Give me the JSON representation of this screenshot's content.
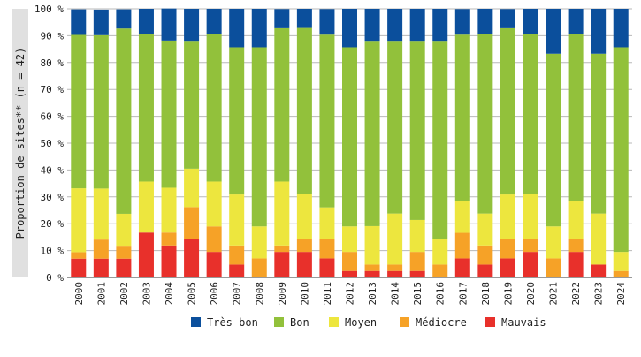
{
  "colors": {
    "tres_bon": "#0b4f9c",
    "bon": "#92c13b",
    "moyen": "#ede63e",
    "mediocre": "#f6a227",
    "mauvais": "#e8302b",
    "ylabel_band": "#e0e0e0",
    "grid": "#b8b8b8"
  },
  "chart_data": {
    "type": "bar",
    "stacked": true,
    "percent_scale": true,
    "title": "",
    "xlabel": "",
    "ylabel": "Proportion de sites** (n = 42)",
    "ylim": [
      0,
      100
    ],
    "yticks": [
      "0 %",
      "10 %",
      "20 %",
      "30 %",
      "40 %",
      "50 %",
      "60 %",
      "70 %",
      "80 %",
      "90 %",
      "100 %"
    ],
    "grid": true,
    "legend_position": "bottom",
    "categories": [
      "2000",
      "2001",
      "2002",
      "2003",
      "2004",
      "2005",
      "2006",
      "2007",
      "2008",
      "2009",
      "2010",
      "2011",
      "2012",
      "2013",
      "2014",
      "2015",
      "2016",
      "2017",
      "2018",
      "2019",
      "2020",
      "2021",
      "2022",
      "2023",
      "2024"
    ],
    "series": [
      {
        "name": "Mauvais",
        "color_key": "mauvais",
        "values": [
          7,
          7,
          7,
          16.7,
          11.9,
          14.3,
          9.5,
          4.8,
          0,
          9.5,
          9.5,
          7.1,
          2.4,
          2.4,
          2.4,
          2.4,
          0,
          7.1,
          4.8,
          7.1,
          9.5,
          0,
          9.5,
          4.8,
          0
        ]
      },
      {
        "name": "Médiocre",
        "color_key": "mediocre",
        "values": [
          2.4,
          7.1,
          4.8,
          0,
          4.8,
          11.9,
          9.5,
          7.1,
          7.1,
          2.4,
          4.8,
          7.1,
          7.1,
          2.4,
          2.4,
          7.1,
          4.8,
          9.5,
          7.1,
          7.1,
          4.8,
          7.1,
          4.8,
          0,
          2.4
        ]
      },
      {
        "name": "Moyen",
        "color_key": "moyen",
        "values": [
          23.8,
          19,
          11.9,
          19,
          16.7,
          14.3,
          16.7,
          19,
          11.9,
          23.8,
          16.7,
          11.9,
          9.5,
          14.3,
          19,
          11.9,
          9.5,
          11.9,
          11.9,
          16.7,
          16.7,
          11.9,
          14.3,
          19,
          7.1
        ]
      },
      {
        "name": "Bon",
        "color_key": "bon",
        "values": [
          57.1,
          57.1,
          69,
          54.8,
          54.8,
          47.6,
          54.8,
          54.8,
          66.7,
          57.1,
          61.9,
          64.3,
          66.7,
          69,
          64.3,
          66.7,
          73.8,
          61.9,
          66.7,
          61.9,
          59.5,
          64.3,
          61.9,
          59.5,
          76.2
        ]
      },
      {
        "name": "Très bon",
        "color_key": "tres_bon",
        "values": [
          9.5,
          9.5,
          7.1,
          9.5,
          11.9,
          11.9,
          9.5,
          14.3,
          14.3,
          7.1,
          7.1,
          9.5,
          14.3,
          11.9,
          11.9,
          11.9,
          11.9,
          9.5,
          9.5,
          7.1,
          9.5,
          16.7,
          9.5,
          16.7,
          14.3
        ]
      }
    ],
    "legend_order": [
      "Très bon",
      "Bon",
      "Moyen",
      "Médiocre",
      "Mauvais"
    ]
  }
}
